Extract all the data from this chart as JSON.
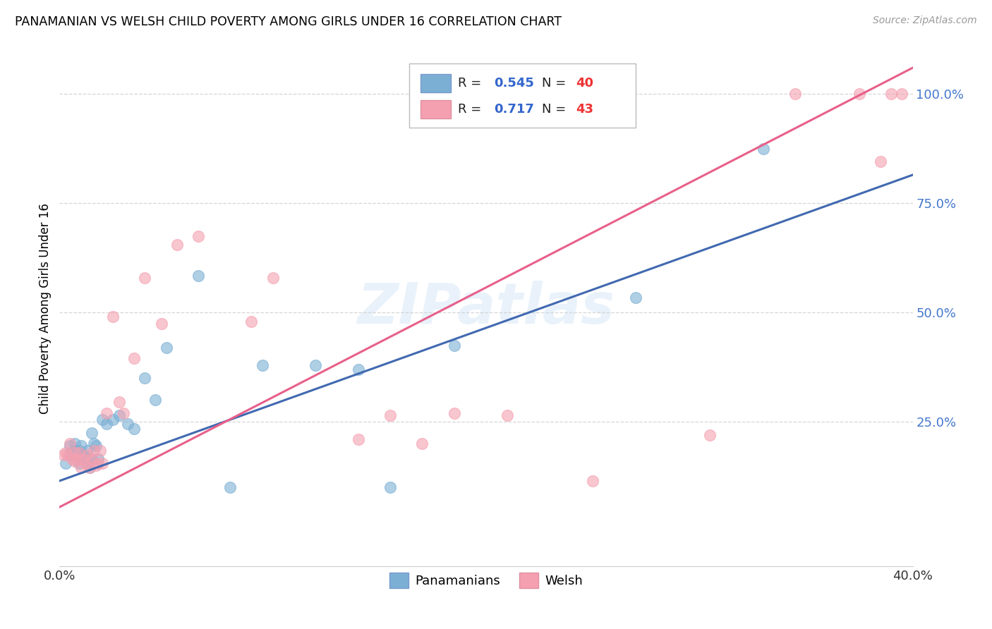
{
  "title": "PANAMANIAN VS WELSH CHILD POVERTY AMONG GIRLS UNDER 16 CORRELATION CHART",
  "source": "Source: ZipAtlas.com",
  "ylabel": "Child Poverty Among Girls Under 16",
  "xlim": [
    0.0,
    0.4
  ],
  "ylim": [
    -0.08,
    1.1
  ],
  "yticks": [
    0.25,
    0.5,
    0.75,
    1.0
  ],
  "ytick_labels": [
    "25.0%",
    "50.0%",
    "75.0%",
    "100.0%"
  ],
  "xtick_positions": [
    0.0,
    0.05,
    0.1,
    0.15,
    0.2,
    0.25,
    0.3,
    0.35,
    0.4
  ],
  "xtick_labels": [
    "0.0%",
    "",
    "",
    "",
    "",
    "",
    "",
    "",
    "40.0%"
  ],
  "blue_color": "#7BAFD4",
  "pink_color": "#F4A0B0",
  "blue_line_color": "#4169B0",
  "pink_line_color": "#E8608A",
  "legend_R_blue": "0.545",
  "legend_N_blue": "40",
  "legend_R_pink": "0.717",
  "legend_N_pink": "43",
  "watermark": "ZIPatlas",
  "blue_scatter_x": [
    0.003,
    0.005,
    0.005,
    0.006,
    0.007,
    0.007,
    0.008,
    0.008,
    0.009,
    0.009,
    0.01,
    0.01,
    0.011,
    0.012,
    0.013,
    0.013,
    0.014,
    0.015,
    0.015,
    0.016,
    0.017,
    0.018,
    0.02,
    0.022,
    0.025,
    0.028,
    0.032,
    0.035,
    0.04,
    0.045,
    0.05,
    0.065,
    0.08,
    0.095,
    0.12,
    0.14,
    0.155,
    0.185,
    0.27,
    0.33
  ],
  "blue_scatter_y": [
    0.155,
    0.175,
    0.195,
    0.18,
    0.2,
    0.185,
    0.175,
    0.165,
    0.155,
    0.185,
    0.175,
    0.195,
    0.175,
    0.165,
    0.155,
    0.185,
    0.145,
    0.165,
    0.225,
    0.2,
    0.195,
    0.165,
    0.255,
    0.245,
    0.255,
    0.265,
    0.245,
    0.235,
    0.35,
    0.3,
    0.42,
    0.585,
    0.1,
    0.38,
    0.38,
    0.37,
    0.1,
    0.425,
    0.535,
    0.875
  ],
  "pink_scatter_x": [
    0.002,
    0.003,
    0.004,
    0.005,
    0.006,
    0.007,
    0.007,
    0.008,
    0.009,
    0.01,
    0.011,
    0.012,
    0.013,
    0.014,
    0.015,
    0.016,
    0.017,
    0.018,
    0.019,
    0.02,
    0.022,
    0.025,
    0.028,
    0.03,
    0.035,
    0.04,
    0.048,
    0.055,
    0.065,
    0.09,
    0.1,
    0.14,
    0.155,
    0.17,
    0.185,
    0.21,
    0.25,
    0.305,
    0.345,
    0.375,
    0.385,
    0.39,
    0.395
  ],
  "pink_scatter_y": [
    0.175,
    0.18,
    0.175,
    0.2,
    0.165,
    0.18,
    0.16,
    0.165,
    0.18,
    0.145,
    0.165,
    0.155,
    0.175,
    0.145,
    0.165,
    0.185,
    0.15,
    0.155,
    0.185,
    0.155,
    0.27,
    0.49,
    0.295,
    0.27,
    0.395,
    0.58,
    0.475,
    0.655,
    0.675,
    0.48,
    0.58,
    0.21,
    0.265,
    0.2,
    0.27,
    0.265,
    0.115,
    0.22,
    1.0,
    1.0,
    0.845,
    1.0,
    1.0
  ],
  "blue_line_x": [
    0.0,
    0.4
  ],
  "blue_line_y": [
    0.115,
    0.815
  ],
  "pink_line_x": [
    0.0,
    0.4
  ],
  "pink_line_y": [
    0.055,
    1.06
  ]
}
